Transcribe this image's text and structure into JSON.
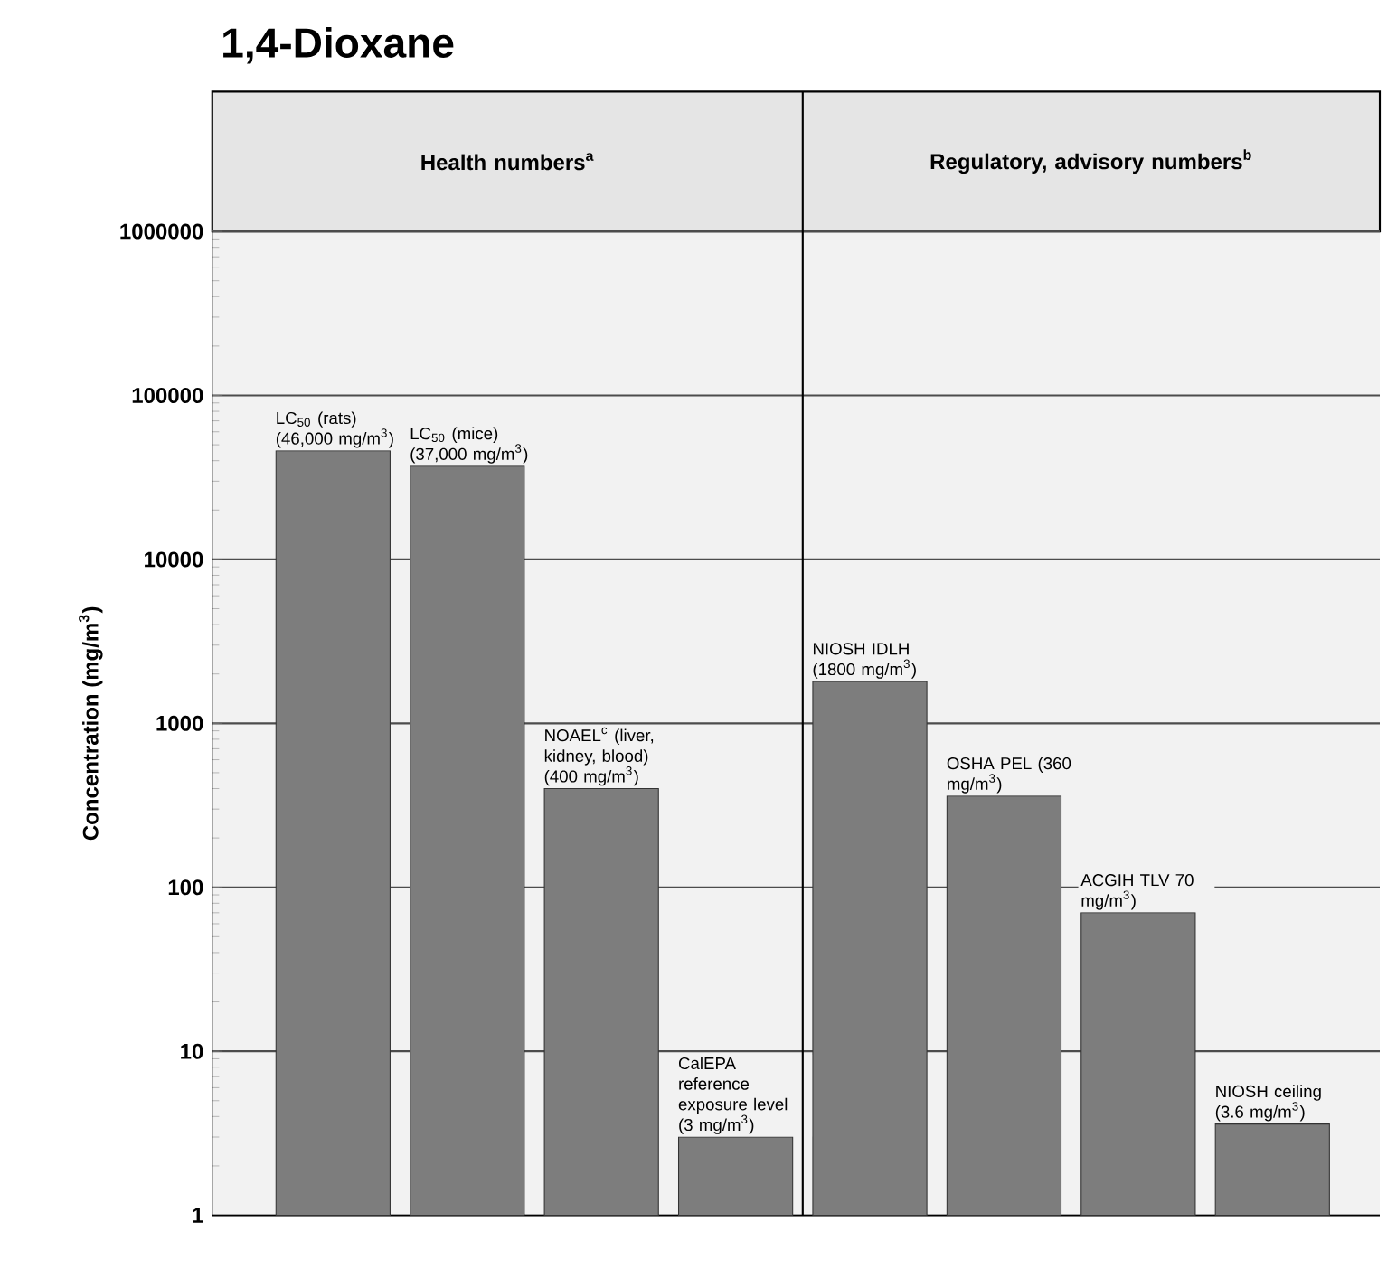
{
  "chart_data": {
    "type": "bar",
    "title": "1,4-Dioxane",
    "ylabel": "Concentration (mg/m$^{3}$)",
    "categories": [
      null,
      null,
      null,
      null,
      null,
      null,
      null,
      null
    ],
    "values": [
      46000,
      37000,
      400,
      3,
      1800,
      360,
      70,
      3.6
    ],
    "value_labels": [
      "LC$_{50}$ (rats) (46,000 mg/m$^{3}$)",
      "LC$_{50}$ (mice) (37,000 mg/m$^{3}$)",
      "NOAEL$^{c}$ (liver, kidney, blood) (400 mg/m$^{3}$)",
      "CalEPA reference exposure level (3 mg/m$^{3}$)",
      "NIOSH IDLH (1800 mg/m$^{3}$)",
      "OSHA PEL (360 mg/m$^{3}$)",
      "ACGIH TLV 70 mg/m$^{3}$)",
      "NIOSH ceiling (3.6 mg/m$^{3}$)"
    ],
    "color": "#7d7d7d",
    "log": true,
    "grid": "y",
    "ylim": [
      1,
      1000000
    ],
    "yticks": [
      1,
      10,
      100,
      1000,
      10000,
      100000,
      1000000
    ],
    "annotations": [
      "Health numbers$^{a}$",
      "Regulatory, advisory numbers$^{b}$"
    ]
  }
}
